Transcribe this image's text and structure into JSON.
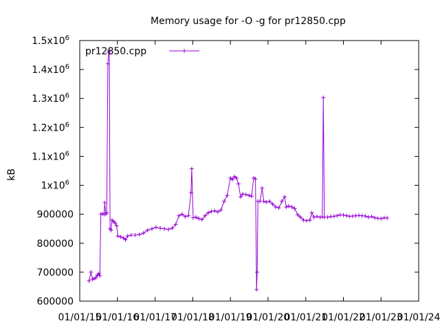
{
  "chart_data": {
    "type": "line",
    "title": "Memory usage for -O -g for pr12850.cpp",
    "xlabel": "",
    "ylabel": "kB",
    "ylim": [
      600000,
      1500000
    ],
    "xlim": [
      "2015-01-01",
      "2024-01-01"
    ],
    "grid": false,
    "legend_position": "top-left",
    "y_ticks": [
      {
        "value": 600000,
        "label": "600000"
      },
      {
        "value": 700000,
        "label": "700000"
      },
      {
        "value": 800000,
        "label": "800000"
      },
      {
        "value": 900000,
        "label": "900000"
      },
      {
        "value": 1000000,
        "mant": "1x10",
        "exp": "6"
      },
      {
        "value": 1100000,
        "mant": "1.1x10",
        "exp": "6"
      },
      {
        "value": 1200000,
        "mant": "1.2x10",
        "exp": "6"
      },
      {
        "value": 1300000,
        "mant": "1.3x10",
        "exp": "6"
      },
      {
        "value": 1400000,
        "mant": "1.4x10",
        "exp": "6"
      },
      {
        "value": 1500000,
        "mant": "1.5x10",
        "exp": "6"
      }
    ],
    "x_ticks": [
      {
        "date": "2015-01-01",
        "label": "01/01/15"
      },
      {
        "date": "2016-01-01",
        "label": "01/01/16"
      },
      {
        "date": "2017-01-01",
        "label": "01/01/17"
      },
      {
        "date": "2018-01-01",
        "label": "01/01/18"
      },
      {
        "date": "2019-01-01",
        "label": "01/01/19"
      },
      {
        "date": "2020-01-01",
        "label": "01/01/20"
      },
      {
        "date": "2021-01-01",
        "label": "01/01/21"
      },
      {
        "date": "2022-01-01",
        "label": "01/01/22"
      },
      {
        "date": "2023-01-01",
        "label": "01/01/23"
      },
      {
        "date": "2024-01-01",
        "label": "01/01/24"
      }
    ],
    "series": [
      {
        "name": "pr12850.cpp",
        "color": "#9400d3",
        "points": [
          [
            "2015-04-01",
            670000
          ],
          [
            "2015-04-20",
            700000
          ],
          [
            "2015-05-05",
            675000
          ],
          [
            "2015-05-20",
            678000
          ],
          [
            "2015-06-05",
            680000
          ],
          [
            "2015-06-20",
            690000
          ],
          [
            "2015-07-05",
            695000
          ],
          [
            "2015-07-15",
            688000
          ],
          [
            "2015-07-25",
            900000
          ],
          [
            "2015-08-10",
            902000
          ],
          [
            "2015-08-25",
            900000
          ],
          [
            "2015-09-01",
            940000
          ],
          [
            "2015-09-10",
            900000
          ],
          [
            "2015-09-20",
            905000
          ],
          [
            "2015-10-01",
            1420000
          ],
          [
            "2015-10-08",
            1460000
          ],
          [
            "2015-10-15",
            1465000
          ],
          [
            "2015-10-22",
            850000
          ],
          [
            "2015-11-01",
            845000
          ],
          [
            "2015-11-10",
            880000
          ],
          [
            "2015-11-25",
            875000
          ],
          [
            "2015-12-10",
            870000
          ],
          [
            "2015-12-25",
            860000
          ],
          [
            "2016-01-05",
            825000
          ],
          [
            "2016-02-01",
            822000
          ],
          [
            "2016-03-01",
            818000
          ],
          [
            "2016-03-20",
            812000
          ],
          [
            "2016-04-10",
            825000
          ],
          [
            "2016-05-15",
            828000
          ],
          [
            "2016-06-20",
            828000
          ],
          [
            "2016-08-01",
            830000
          ],
          [
            "2016-09-10",
            835000
          ],
          [
            "2016-10-20",
            845000
          ],
          [
            "2016-12-01",
            850000
          ],
          [
            "2017-01-10",
            855000
          ],
          [
            "2017-02-20",
            852000
          ],
          [
            "2017-04-01",
            850000
          ],
          [
            "2017-05-10",
            848000
          ],
          [
            "2017-06-15",
            852000
          ],
          [
            "2017-07-20",
            865000
          ],
          [
            "2017-08-20",
            895000
          ],
          [
            "2017-09-20",
            900000
          ],
          [
            "2017-10-20",
            892000
          ],
          [
            "2017-11-20",
            895000
          ],
          [
            "2017-12-15",
            975000
          ],
          [
            "2017-12-22",
            1057000
          ],
          [
            "2018-01-05",
            888000
          ],
          [
            "2018-02-01",
            890000
          ],
          [
            "2018-03-01",
            885000
          ],
          [
            "2018-04-01",
            882000
          ],
          [
            "2018-05-01",
            895000
          ],
          [
            "2018-06-01",
            905000
          ],
          [
            "2018-07-01",
            910000
          ],
          [
            "2018-08-01",
            912000
          ],
          [
            "2018-09-01",
            908000
          ],
          [
            "2018-10-01",
            915000
          ],
          [
            "2018-11-01",
            945000
          ],
          [
            "2018-12-01",
            965000
          ],
          [
            "2019-01-01",
            1025000
          ],
          [
            "2019-01-20",
            1020000
          ],
          [
            "2019-02-10",
            1030000
          ],
          [
            "2019-03-01",
            1025000
          ],
          [
            "2019-03-20",
            1005000
          ],
          [
            "2019-04-10",
            960000
          ],
          [
            "2019-05-01",
            970000
          ],
          [
            "2019-06-01",
            968000
          ],
          [
            "2019-07-01",
            965000
          ],
          [
            "2019-07-25",
            962000
          ],
          [
            "2019-08-15",
            1025000
          ],
          [
            "2019-09-01",
            1022000
          ],
          [
            "2019-09-12",
            640000
          ],
          [
            "2019-09-18",
            700000
          ],
          [
            "2019-09-25",
            945000
          ],
          [
            "2019-10-15",
            945000
          ],
          [
            "2019-11-05",
            990000
          ],
          [
            "2019-11-20",
            945000
          ],
          [
            "2019-12-15",
            942000
          ],
          [
            "2020-01-15",
            945000
          ],
          [
            "2020-02-15",
            935000
          ],
          [
            "2020-03-15",
            925000
          ],
          [
            "2020-04-15",
            922000
          ],
          [
            "2020-05-15",
            945000
          ],
          [
            "2020-06-10",
            960000
          ],
          [
            "2020-06-25",
            925000
          ],
          [
            "2020-07-20",
            928000
          ],
          [
            "2020-08-20",
            925000
          ],
          [
            "2020-09-15",
            920000
          ],
          [
            "2020-10-15",
            898000
          ],
          [
            "2020-11-10",
            890000
          ],
          [
            "2020-12-10",
            880000
          ],
          [
            "2021-01-10",
            878000
          ],
          [
            "2021-02-10",
            880000
          ],
          [
            "2021-03-01",
            905000
          ],
          [
            "2021-03-20",
            890000
          ],
          [
            "2021-04-20",
            892000
          ],
          [
            "2021-05-20",
            890000
          ],
          [
            "2021-06-10",
            891000
          ],
          [
            "2021-06-20",
            1303000
          ],
          [
            "2021-06-30",
            890000
          ],
          [
            "2021-08-01",
            890000
          ],
          [
            "2021-09-01",
            892000
          ],
          [
            "2021-10-01",
            893000
          ],
          [
            "2021-11-01",
            895000
          ],
          [
            "2021-12-01",
            898000
          ],
          [
            "2022-01-01",
            897000
          ],
          [
            "2022-02-01",
            895000
          ],
          [
            "2022-03-01",
            893000
          ],
          [
            "2022-04-01",
            894000
          ],
          [
            "2022-05-01",
            895000
          ],
          [
            "2022-06-01",
            896000
          ],
          [
            "2022-07-01",
            895000
          ],
          [
            "2022-08-01",
            894000
          ],
          [
            "2022-09-01",
            890000
          ],
          [
            "2022-10-01",
            892000
          ],
          [
            "2022-11-01",
            888000
          ],
          [
            "2022-12-01",
            886000
          ],
          [
            "2023-01-01",
            885000
          ],
          [
            "2023-02-01",
            888000
          ],
          [
            "2023-03-01",
            887000
          ]
        ]
      }
    ]
  }
}
